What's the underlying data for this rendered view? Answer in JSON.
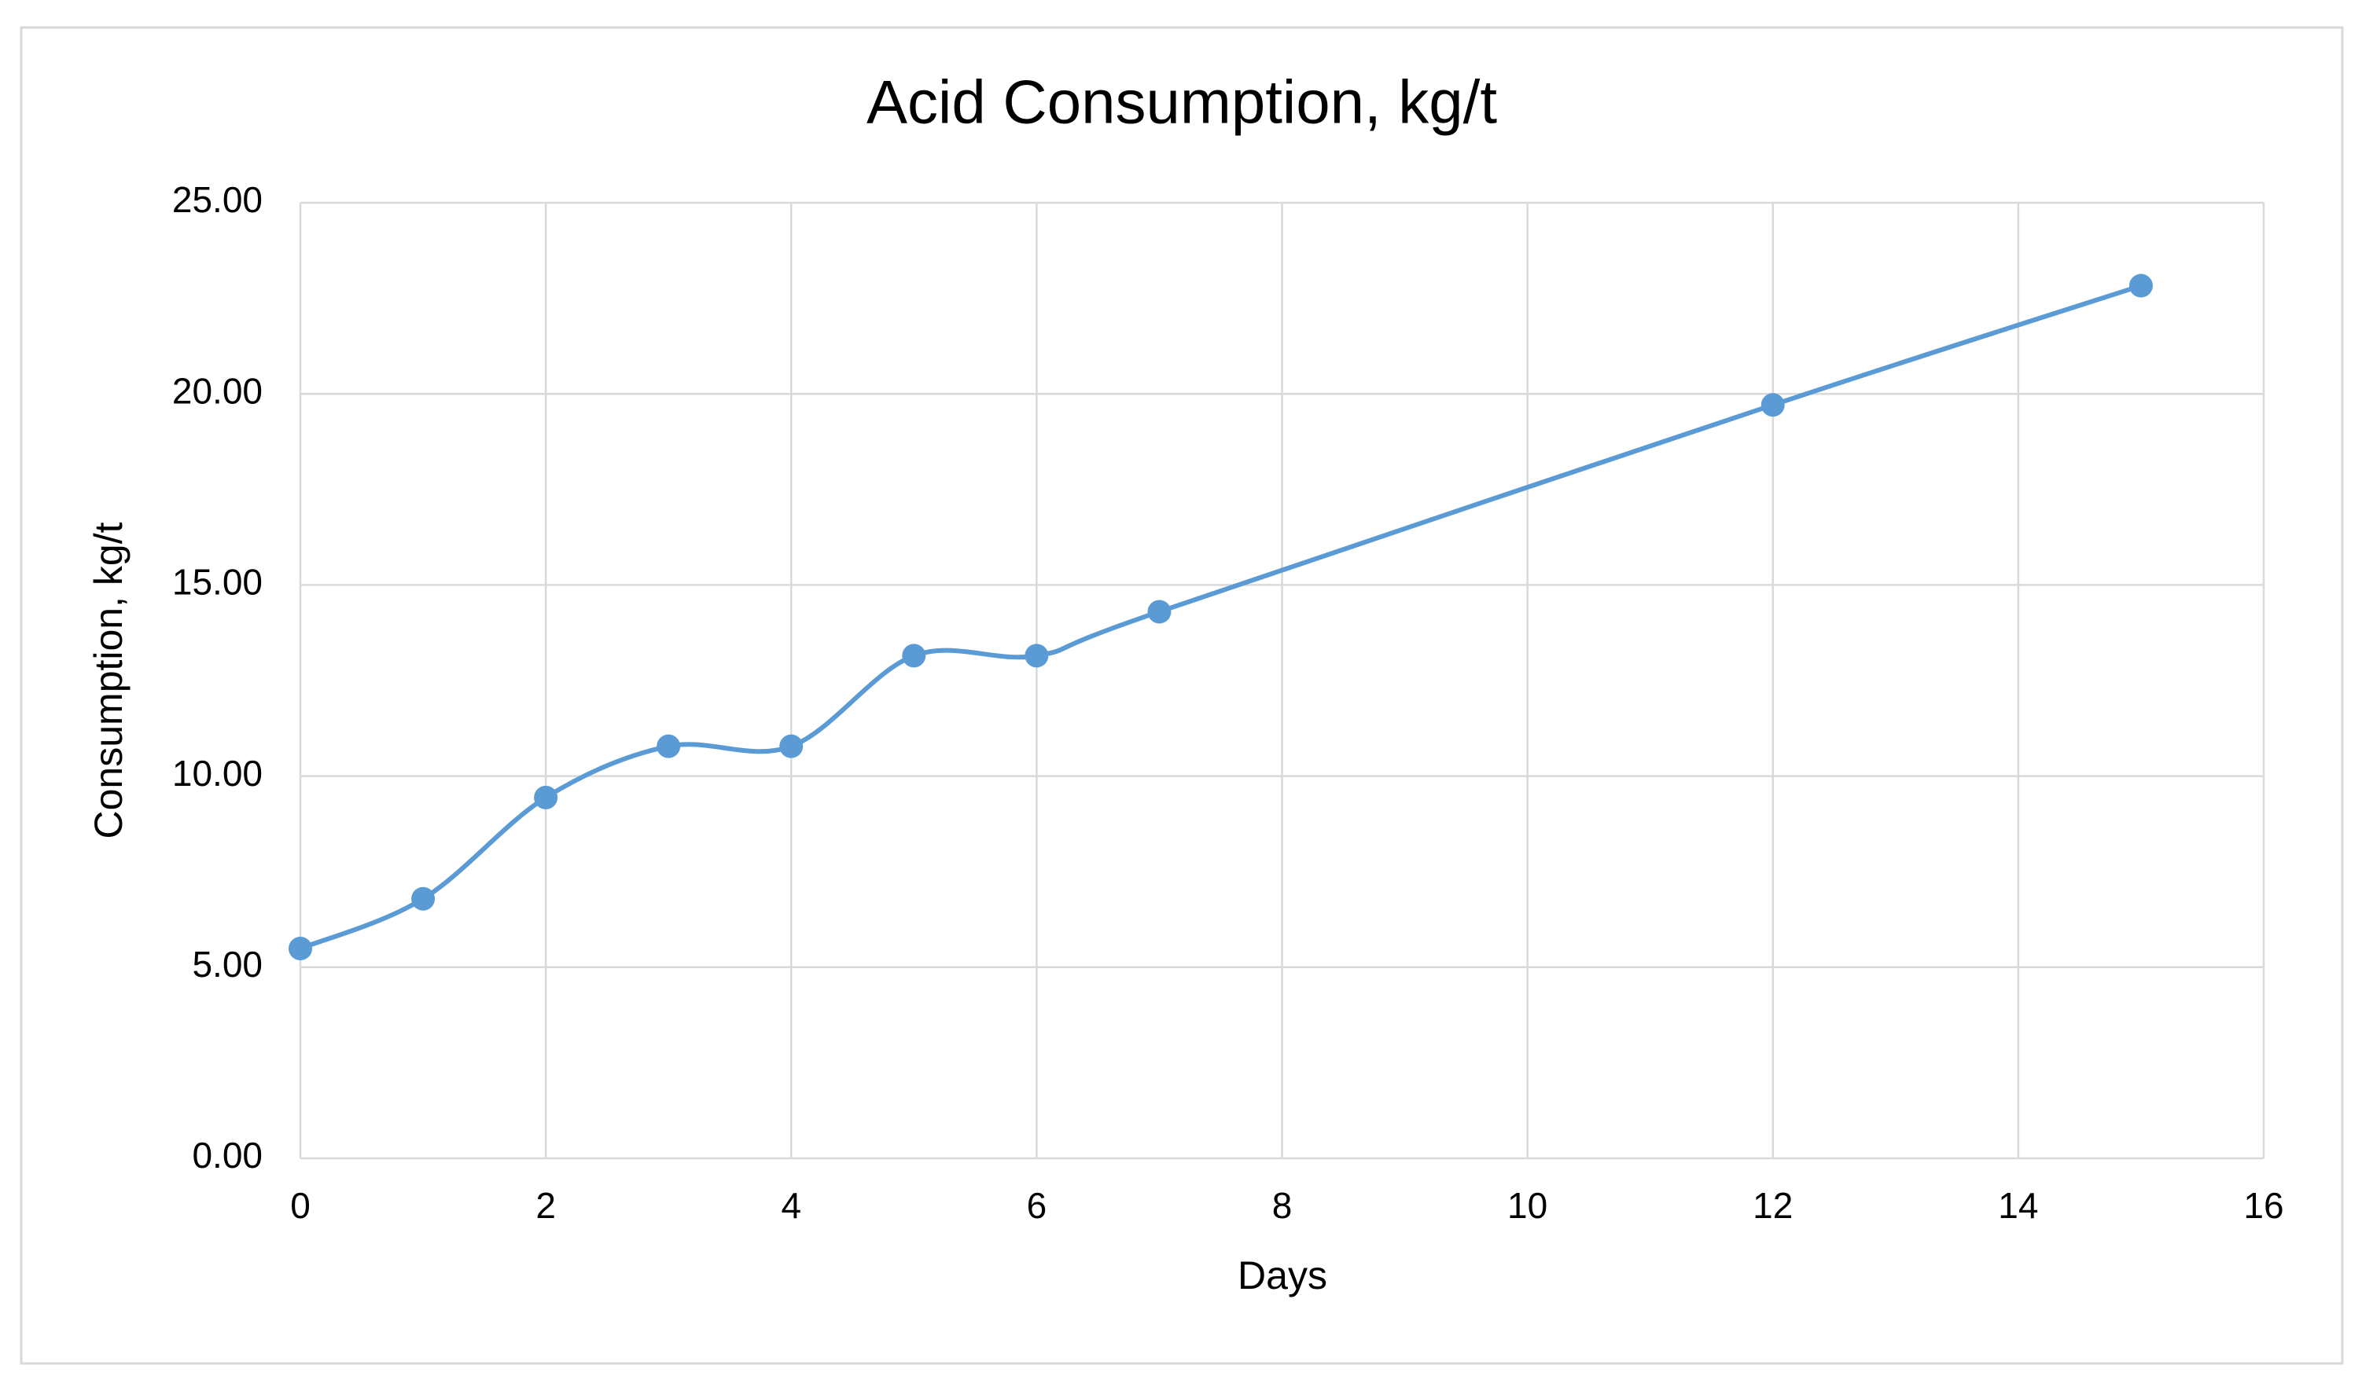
{
  "chart_data": {
    "type": "line",
    "title": "Acid Consumption, kg/t",
    "x_label": "Days",
    "y_label": "Consumption, kg/t",
    "x": [
      0,
      1,
      2,
      3,
      4,
      5,
      6,
      7,
      12,
      15
    ],
    "series": [
      {
        "name": "Acid Consumption",
        "color": "#5b9bd5",
        "values": [
          5.49,
          6.79,
          9.44,
          10.78,
          10.78,
          13.15,
          13.15,
          14.3,
          19.71,
          22.83
        ]
      }
    ],
    "smooth": true,
    "xlim": [
      0,
      16
    ],
    "xticks": [
      0,
      2,
      4,
      6,
      8,
      10,
      12,
      14,
      16
    ],
    "ylim": [
      0,
      25
    ],
    "yticks": [
      {
        "value": 0,
        "label": "0.00"
      },
      {
        "value": 5,
        "label": "5.00"
      },
      {
        "value": 10,
        "label": "10.00"
      },
      {
        "value": 15,
        "label": "15.00"
      },
      {
        "value": 20,
        "label": "20.00"
      },
      {
        "value": 25,
        "label": "25.00"
      }
    ],
    "grid": true
  }
}
